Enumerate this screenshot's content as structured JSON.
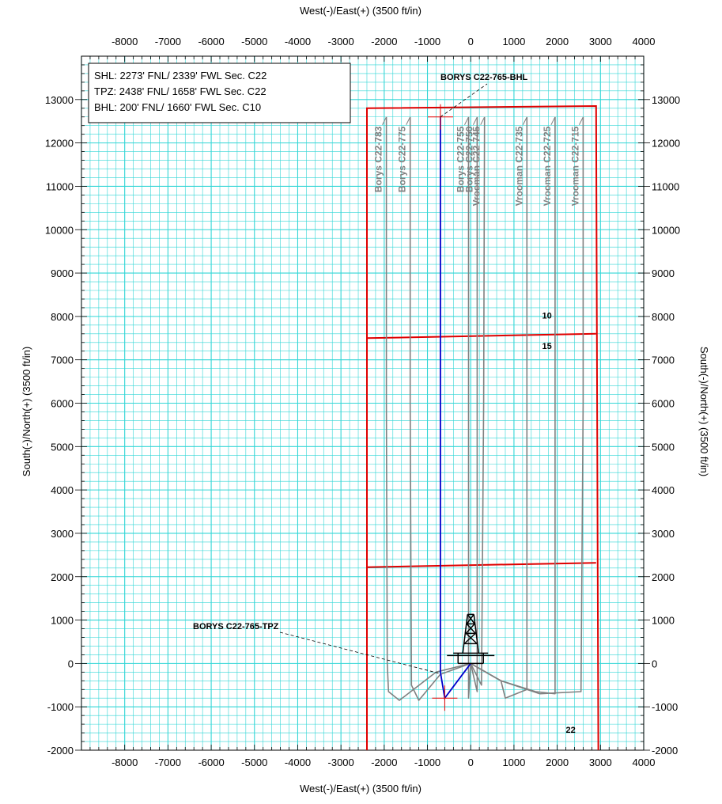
{
  "chart_data": {
    "type": "scatter",
    "title": "",
    "xlabel": "West(-)/East(+) (3500 ft/in)",
    "ylabel": "South(-)/North(+) (3500 ft/in)",
    "xlim": [
      -9000,
      4000
    ],
    "ylim": [
      -2000,
      14000
    ],
    "x_ticks": [
      -8000,
      -7000,
      -6000,
      -5000,
      -4000,
      -3000,
      -2000,
      -1000,
      0,
      1000,
      2000,
      3000,
      4000
    ],
    "y_ticks": [
      -2000,
      -1000,
      0,
      1000,
      2000,
      3000,
      4000,
      5000,
      6000,
      7000,
      8000,
      9000,
      10000,
      11000,
      12000,
      13000
    ],
    "grid": true,
    "colors": {
      "grid": "#33d6d6",
      "section": "#e00000",
      "subject_well": "#0000cc",
      "offset_wells": "#808080"
    },
    "info_box": [
      "SHL: 2273' FNL/ 2339' FWL Sec. C22",
      "TPZ: 2438' FNL/ 1658' FWL Sec. C22",
      "BHL: 200' FNL/ 1660' FWL Sec. C10"
    ],
    "annotations": {
      "bhl": "BORYS C22-765-BHL",
      "tpz": "BORYS C22-765-TPZ"
    },
    "section_labels": [
      {
        "text": "10",
        "x": 1650,
        "y": 7950
      },
      {
        "text": "15",
        "x": 1650,
        "y": 7250
      },
      {
        "text": "22",
        "x": 2200,
        "y": -1600
      }
    ],
    "section_lines": [
      {
        "name": "section-boundary",
        "x": [
          -2400,
          -2400,
          2900,
          2950
        ],
        "y": [
          -2000,
          12800,
          12850,
          -2000
        ]
      },
      {
        "name": "section-line-10-15",
        "x": [
          -2400,
          2900
        ],
        "y": [
          7500,
          7600
        ]
      },
      {
        "name": "section-line-15-22",
        "x": [
          -2400,
          2900
        ],
        "y": [
          2220,
          2320
        ]
      }
    ],
    "subject_well": {
      "name": "BORYS C22-765",
      "x": [
        0,
        -600,
        -700,
        -700
      ],
      "y": [
        0,
        -800,
        -200,
        12600
      ],
      "tpz": [
        -700,
        -200
      ],
      "bhl": [
        -700,
        12600
      ]
    },
    "series": [
      {
        "name": "Borys C22-783",
        "x": [
          0,
          -800,
          -1650,
          -1900,
          -1930,
          -1950,
          -1950
        ],
        "y": [
          0,
          -200,
          -850,
          -650,
          0,
          6000,
          12600
        ]
      },
      {
        "name": "Borys C22-775",
        "x": [
          0,
          -700,
          -1200,
          -1370,
          -1400,
          -1400
        ],
        "y": [
          0,
          -250,
          -850,
          -500,
          6000,
          12600
        ]
      },
      {
        "name": "Borys C22-755",
        "x": [
          0,
          -50,
          -50,
          -50
        ],
        "y": [
          0,
          -800,
          6000,
          12600
        ]
      },
      {
        "name": "Borys C22-750",
        "x": [
          0,
          150,
          150,
          150
        ],
        "y": [
          0,
          -650,
          6000,
          12600
        ]
      },
      {
        "name": "Vrooman C22-745",
        "x": [
          0,
          250,
          300,
          320
        ],
        "y": [
          0,
          -500,
          6000,
          12600
        ]
      },
      {
        "name": "Vrooman C22-735",
        "x": [
          0,
          700,
          800,
          1300,
          1300,
          1300
        ],
        "y": [
          0,
          -400,
          -800,
          -600,
          6000,
          12600
        ]
      },
      {
        "name": "Vrooman C22-725",
        "x": [
          0,
          700,
          1500,
          1950,
          1950,
          1950
        ],
        "y": [
          0,
          -400,
          -650,
          -700,
          6000,
          12600
        ]
      },
      {
        "name": "Vrooman C22-715",
        "x": [
          0,
          700,
          1600,
          2550,
          2600,
          2600
        ],
        "y": [
          0,
          -400,
          -700,
          -650,
          6000,
          12600
        ]
      }
    ]
  }
}
